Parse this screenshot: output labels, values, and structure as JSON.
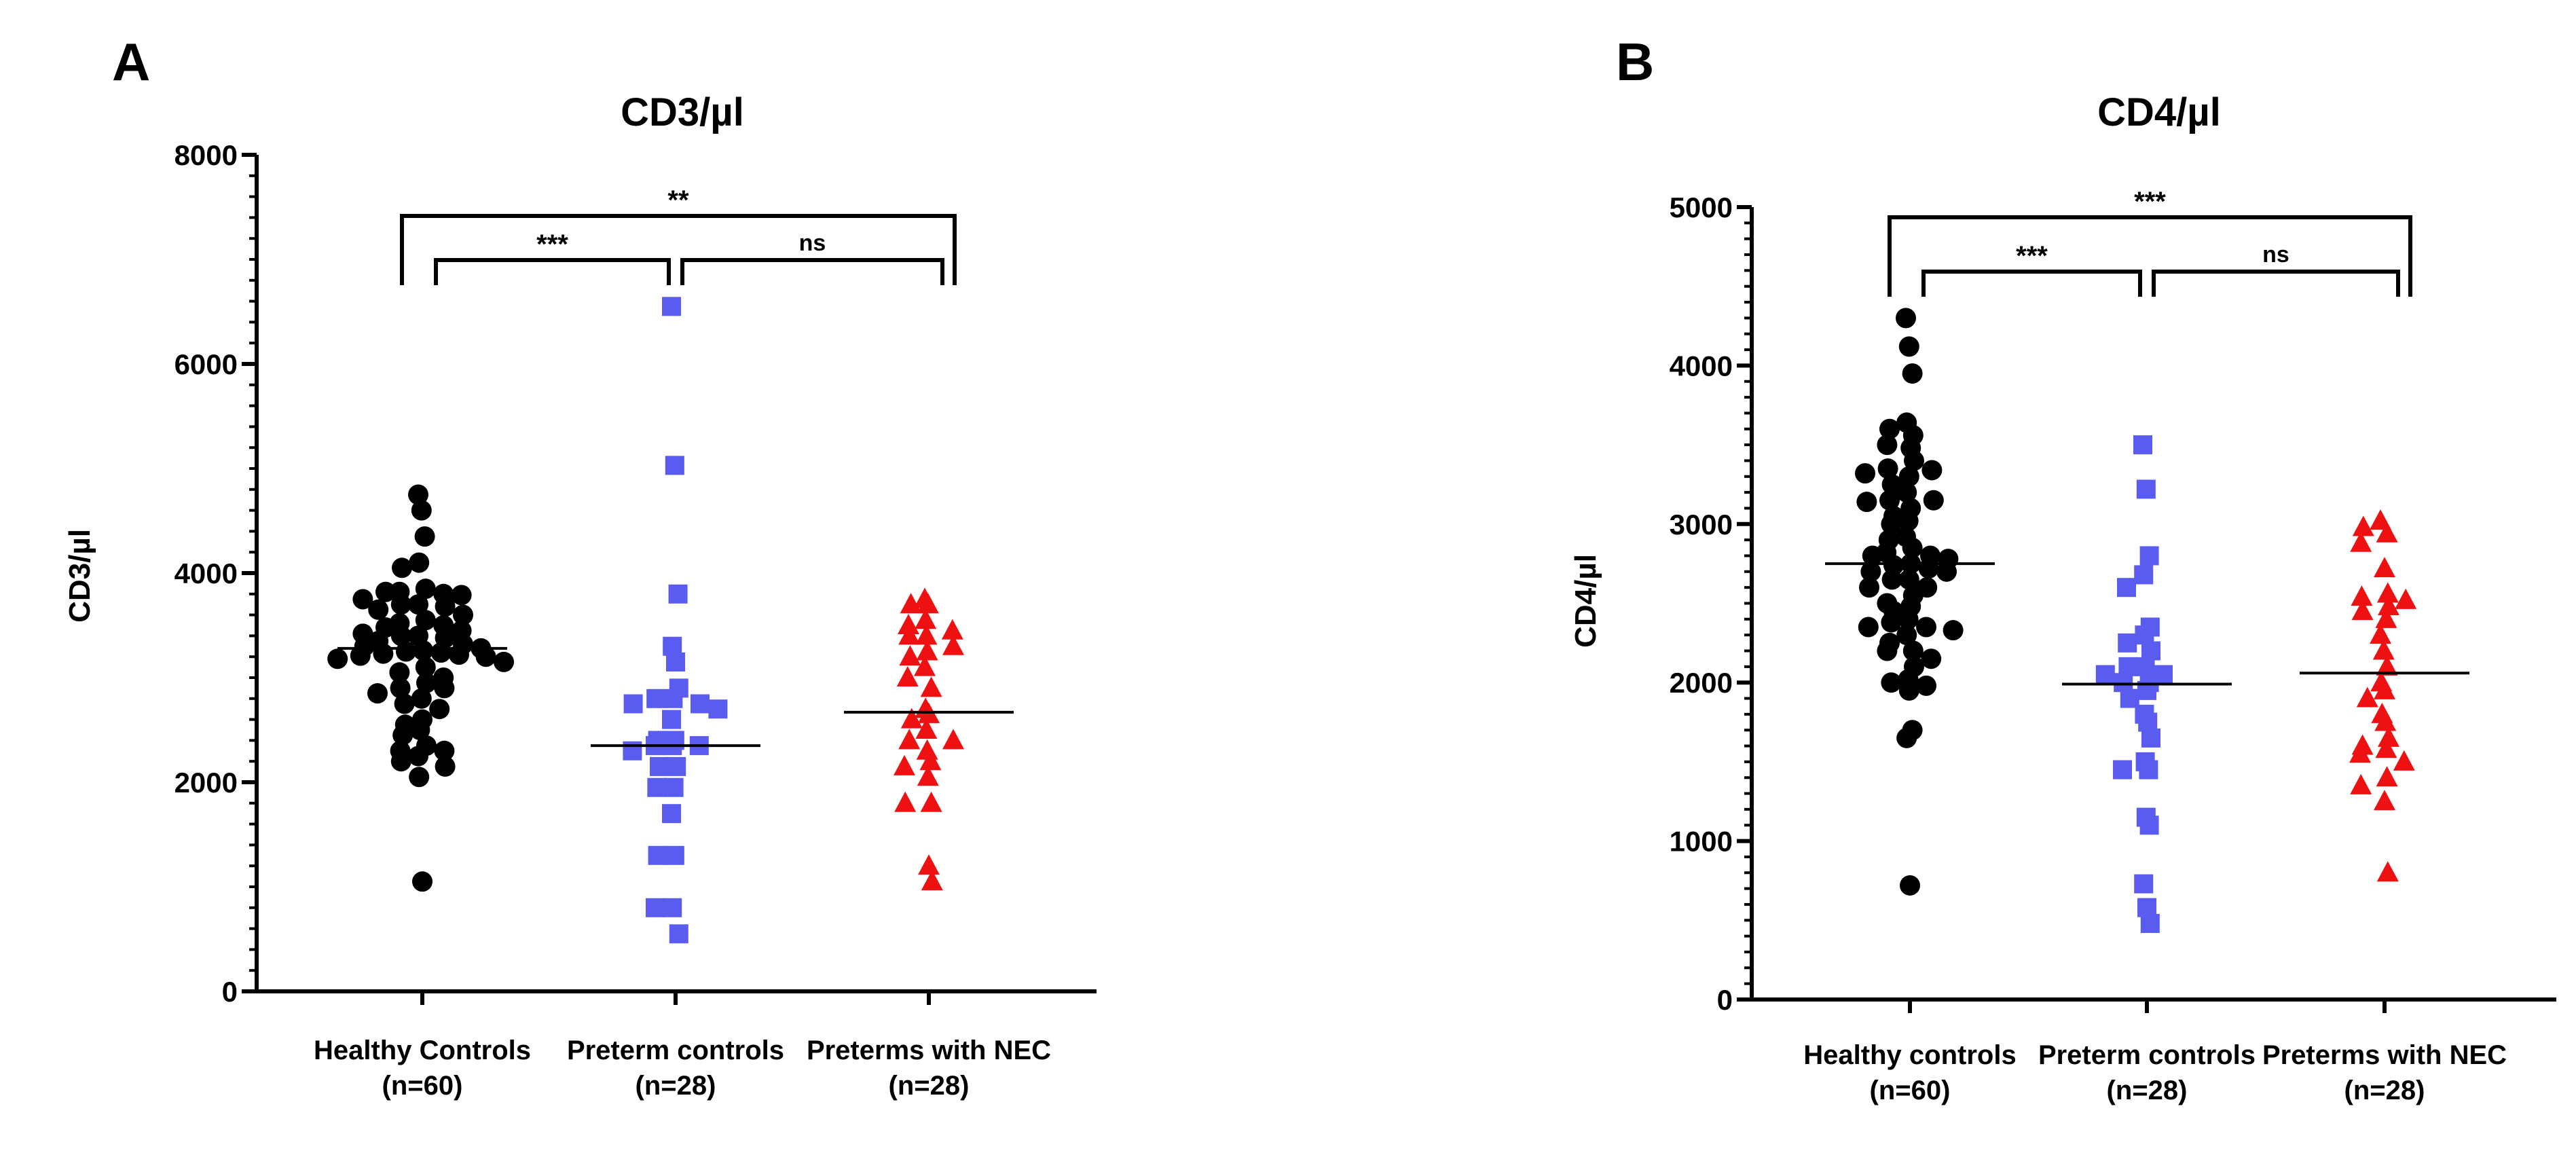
{
  "panels": [
    {
      "letter": "A",
      "chart_data": {
        "type": "scatter",
        "title": "CD3/µl",
        "xlabel": "",
        "ylabel": "CD3/µl",
        "ylim": [
          0,
          8000
        ],
        "yticks": [
          "0",
          "2000",
          "4000",
          "6000",
          "8000"
        ],
        "categories": [
          "Healthy Controls",
          "Preterm controls",
          "Preterms with NEC"
        ],
        "category_counts": [
          "(n=60)",
          "(n=28)",
          "(n=28)"
        ],
        "markers": [
          "circle",
          "square",
          "triangle"
        ],
        "colors": [
          "#000000",
          "#5a5cf0",
          "#ee1111"
        ],
        "series": [
          {
            "values": [
              4750,
              4600,
              4350,
              4100,
              4050,
              3850,
              3820,
              3800,
              3820,
              3790,
              3750,
              3700,
              3700,
              3680,
              3650,
              3600,
              3550,
              3520,
              3500,
              3480,
              3450,
              3420,
              3400,
              3400,
              3380,
              3350,
              3320,
              3300,
              3280,
              3260,
              3250,
              3240,
              3230,
              3220,
              3210,
              3200,
              3180,
              3150,
              3100,
              3050,
              3000,
              2950,
              2900,
              2900,
              2850,
              2800,
              2750,
              2700,
              2600,
              2550,
              2500,
              2450,
              2350,
              2300,
              2300,
              2250,
              2200,
              2150,
              2050,
              1050
            ],
            "median": 3280
          },
          {
            "values": [
              6550,
              5030,
              3800,
              3300,
              3150,
              2900,
              2800,
              2800,
              2750,
              2750,
              2700,
              2600,
              2400,
              2400,
              2350,
              2350,
              2350,
              2300,
              2150,
              2150,
              1950,
              1950,
              1700,
              1300,
              1300,
              800,
              800,
              550
            ],
            "median": 2350
          },
          {
            "values": [
              3750,
              3700,
              3700,
              3550,
              3500,
              3450,
              3400,
              3400,
              3300,
              3250,
              3200,
              3100,
              3000,
              2900,
              2700,
              2650,
              2600,
              2500,
              2400,
              2400,
              2300,
              2200,
              2150,
              2050,
              1800,
              1800,
              1200,
              1050
            ],
            "median": 2670
          }
        ],
        "comparisons": [
          {
            "label": "***"
          },
          {
            "label": "ns"
          },
          {
            "label": "**"
          }
        ]
      }
    },
    {
      "letter": "B",
      "chart_data": {
        "type": "scatter",
        "title": "CD4/µl",
        "xlabel": "",
        "ylabel": "CD4/µl",
        "ylim": [
          0,
          5000
        ],
        "yticks": [
          "0",
          "1000",
          "2000",
          "3000",
          "4000",
          "5000"
        ],
        "categories": [
          "Healthy controls",
          "Preterm controls",
          "Preterms with NEC"
        ],
        "category_counts": [
          "(n=60)",
          "(n=28)",
          "(n=28)"
        ],
        "markers": [
          "circle",
          "square",
          "triangle"
        ],
        "colors": [
          "#000000",
          "#5a5cf0",
          "#ee1111"
        ],
        "series": [
          {
            "values": [
              4300,
              4120,
              3950,
              3640,
              3600,
              3560,
              3500,
              3480,
              3400,
              3350,
              3340,
              3320,
              3300,
              3250,
              3200,
              3150,
              3150,
              3140,
              3100,
              3050,
              3020,
              3000,
              2920,
              2900,
              2850,
              2820,
              2800,
              2800,
              2780,
              2750,
              2740,
              2720,
              2700,
              2700,
              2650,
              2650,
              2600,
              2600,
              2550,
              2500,
              2480,
              2450,
              2400,
              2380,
              2350,
              2350,
              2330,
              2300,
              2250,
              2200,
              2200,
              2150,
              2100,
              2020,
              2000,
              1980,
              1950,
              1700,
              1650,
              720
            ],
            "median": 2750
          },
          {
            "values": [
              3500,
              3220,
              2800,
              2680,
              2600,
              2350,
              2300,
              2250,
              2200,
              2100,
              2100,
              2050,
              2050,
              2000,
              2000,
              1950,
              1900,
              1800,
              1750,
              1650,
              1500,
              1450,
              1450,
              1150,
              1100,
              730,
              580,
              480
            ],
            "median": 1990
          },
          {
            "values": [
              3020,
              2980,
              2940,
              2880,
              2720,
              2560,
              2540,
              2520,
              2480,
              2450,
              2400,
              2300,
              2200,
              2100,
              2000,
              1950,
              1900,
              1800,
              1750,
              1650,
              1600,
              1580,
              1550,
              1500,
              1400,
              1350,
              1250,
              800
            ],
            "median": 2060
          }
        ],
        "comparisons": [
          {
            "label": "***"
          },
          {
            "label": "ns"
          },
          {
            "label": "***"
          }
        ]
      }
    }
  ]
}
